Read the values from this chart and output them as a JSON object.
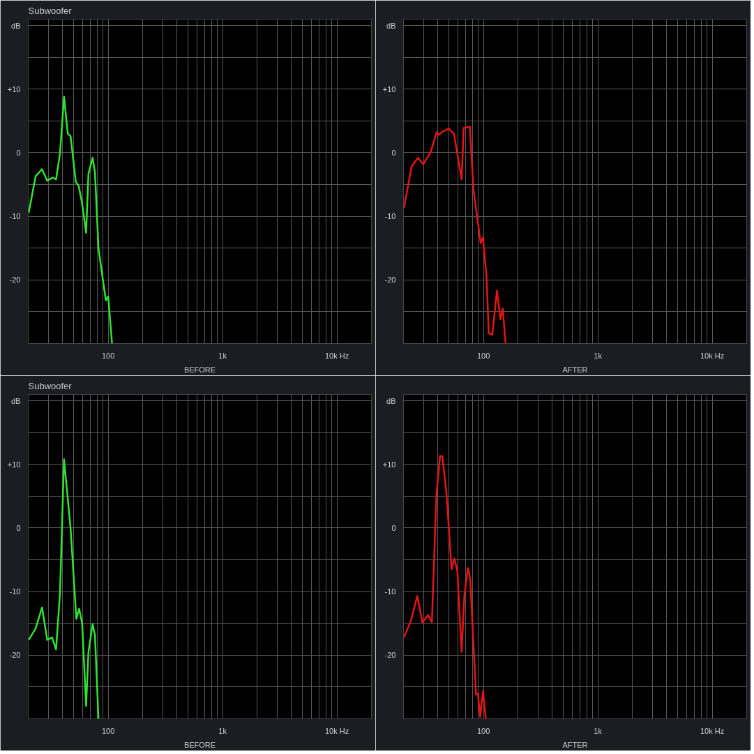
{
  "chart_data": [
    {
      "type": "line",
      "title": "Subwoofer",
      "xlabel": "BEFORE",
      "log": "x",
      "grid": true,
      "marker": "none",
      "line_style": "solid",
      "xlim": [
        20,
        20000
      ],
      "ylim": [
        -30,
        21
      ],
      "xticks": [
        {
          "value": 30,
          "label": null
        },
        {
          "value": 40,
          "label": null
        },
        {
          "value": 50,
          "label": null
        },
        {
          "value": 60,
          "label": null
        },
        {
          "value": 70,
          "label": null
        },
        {
          "value": 80,
          "label": null
        },
        {
          "value": 90,
          "label": null
        },
        100,
        {
          "value": 200,
          "label": null
        },
        {
          "value": 300,
          "label": null
        },
        {
          "value": 400,
          "label": null
        },
        {
          "value": 500,
          "label": null
        },
        {
          "value": 600,
          "label": null
        },
        {
          "value": 700,
          "label": null
        },
        {
          "value": 800,
          "label": null
        },
        {
          "value": 900,
          "label": null
        },
        {
          "value": 1000,
          "label": "1k"
        },
        {
          "value": 2000,
          "label": null
        },
        {
          "value": 3000,
          "label": null
        },
        {
          "value": 4000,
          "label": null
        },
        {
          "value": 5000,
          "label": null
        },
        {
          "value": 6000,
          "label": null
        },
        {
          "value": 7000,
          "label": null
        },
        {
          "value": 8000,
          "label": null
        },
        {
          "value": 9000,
          "label": null
        },
        {
          "value": 10000,
          "label": "10k Hz"
        }
      ],
      "yticks": [
        {
          "value": 20,
          "label": "dB"
        },
        {
          "value": 15,
          "label": null
        },
        {
          "value": 10,
          "label": "+10"
        },
        {
          "value": 5,
          "label": null
        },
        0,
        {
          "value": -5,
          "label": null
        },
        -10,
        {
          "value": -15,
          "label": null
        },
        -20,
        {
          "value": -25,
          "label": null
        }
      ],
      "series": [
        {
          "color": "#2ee62e",
          "x": [
            20.2,
            23.2,
            26.4,
            29.3,
            32.7,
            35.0,
            37.9,
            41.1,
            44.3,
            46.9,
            52.1,
            55.2,
            59.2,
            64.1,
            67.2,
            73.1,
            76.6,
            82.2,
            90.2,
            95.4,
            100,
            108
          ],
          "values": [
            -9.4,
            -3.7,
            -2.6,
            -4.4,
            -3.9,
            -4.2,
            -0.1,
            8.8,
            3.0,
            2.6,
            -4.6,
            -5.2,
            -8.0,
            -12.6,
            -3.3,
            -0.8,
            -3.1,
            -15.0,
            -20.2,
            -23.2,
            -22.6,
            -30
          ]
        }
      ]
    },
    {
      "type": "line",
      "xlabel": "AFTER",
      "log": "x",
      "grid": true,
      "marker": "none",
      "line_style": "solid",
      "xlim": [
        20,
        20000
      ],
      "ylim": [
        -30,
        21
      ],
      "xticks": [
        {
          "value": 30,
          "label": null
        },
        {
          "value": 40,
          "label": null
        },
        {
          "value": 50,
          "label": null
        },
        {
          "value": 60,
          "label": null
        },
        {
          "value": 70,
          "label": null
        },
        {
          "value": 80,
          "label": null
        },
        {
          "value": 90,
          "label": null
        },
        100,
        {
          "value": 200,
          "label": null
        },
        {
          "value": 300,
          "label": null
        },
        {
          "value": 400,
          "label": null
        },
        {
          "value": 500,
          "label": null
        },
        {
          "value": 600,
          "label": null
        },
        {
          "value": 700,
          "label": null
        },
        {
          "value": 800,
          "label": null
        },
        {
          "value": 900,
          "label": null
        },
        {
          "value": 1000,
          "label": "1k"
        },
        {
          "value": 2000,
          "label": null
        },
        {
          "value": 3000,
          "label": null
        },
        {
          "value": 4000,
          "label": null
        },
        {
          "value": 5000,
          "label": null
        },
        {
          "value": 6000,
          "label": null
        },
        {
          "value": 7000,
          "label": null
        },
        {
          "value": 8000,
          "label": null
        },
        {
          "value": 9000,
          "label": null
        },
        {
          "value": 10000,
          "label": "10k Hz"
        }
      ],
      "yticks": [
        {
          "value": 20,
          "label": "dB"
        },
        {
          "value": 15,
          "label": null
        },
        {
          "value": 10,
          "label": "+10"
        },
        {
          "value": 5,
          "label": null
        },
        0,
        {
          "value": -5,
          "label": null
        },
        -10,
        {
          "value": -15,
          "label": null
        },
        -20,
        {
          "value": -25,
          "label": null
        }
      ],
      "series": [
        {
          "color": "#e81414",
          "x": [
            20.2,
            23.5,
            26.7,
            29.8,
            34.6,
            38.8,
            40.7,
            43.7,
            49.6,
            55.2,
            64.4,
            67.2,
            75.9,
            82.2,
            94.5,
            99,
            106.3,
            111.3,
            119.5,
            131.2,
            140.6,
            147.5,
            156
          ],
          "values": [
            -8.7,
            -2.2,
            -0.8,
            -1.8,
            0.1,
            3.2,
            2.8,
            3.3,
            3.8,
            3.0,
            -4.2,
            3.9,
            4.1,
            -6.1,
            -14.2,
            -13.3,
            -19.5,
            -28.4,
            -28.6,
            -21.7,
            -26.2,
            -24.5,
            -30
          ]
        }
      ]
    },
    {
      "type": "line",
      "title": "Subwoofer",
      "xlabel": "BEFORE",
      "log": "x",
      "grid": true,
      "marker": "none",
      "line_style": "solid",
      "xlim": [
        20,
        20000
      ],
      "ylim": [
        -30,
        21
      ],
      "xticks": [
        {
          "value": 30,
          "label": null
        },
        {
          "value": 40,
          "label": null
        },
        {
          "value": 50,
          "label": null
        },
        {
          "value": 60,
          "label": null
        },
        {
          "value": 70,
          "label": null
        },
        {
          "value": 80,
          "label": null
        },
        {
          "value": 90,
          "label": null
        },
        100,
        {
          "value": 200,
          "label": null
        },
        {
          "value": 300,
          "label": null
        },
        {
          "value": 400,
          "label": null
        },
        {
          "value": 500,
          "label": null
        },
        {
          "value": 600,
          "label": null
        },
        {
          "value": 700,
          "label": null
        },
        {
          "value": 800,
          "label": null
        },
        {
          "value": 900,
          "label": null
        },
        {
          "value": 1000,
          "label": "1k"
        },
        {
          "value": 2000,
          "label": null
        },
        {
          "value": 3000,
          "label": null
        },
        {
          "value": 4000,
          "label": null
        },
        {
          "value": 5000,
          "label": null
        },
        {
          "value": 6000,
          "label": null
        },
        {
          "value": 7000,
          "label": null
        },
        {
          "value": 8000,
          "label": null
        },
        {
          "value": 9000,
          "label": null
        },
        {
          "value": 10000,
          "label": "10k Hz"
        }
      ],
      "yticks": [
        {
          "value": 20,
          "label": "dB"
        },
        {
          "value": 15,
          "label": null
        },
        {
          "value": 10,
          "label": "+10"
        },
        {
          "value": 5,
          "label": null
        },
        0,
        {
          "value": -5,
          "label": null
        },
        -10,
        {
          "value": -15,
          "label": null
        },
        -20,
        {
          "value": -25,
          "label": null
        }
      ],
      "series": [
        {
          "color": "#2ee62e",
          "x": [
            20.2,
            23.2,
            26.4,
            29.3,
            32.3,
            35.0,
            37.9,
            41.1,
            46.9,
            52.7,
            55.7,
            59.2,
            64.1,
            67.2,
            73.1,
            76.6,
            82.2
          ],
          "values": [
            -17.6,
            -15.8,
            -12.5,
            -17.6,
            -17.2,
            -19.1,
            -10.2,
            10.8,
            -0.1,
            -14.3,
            -12.7,
            -15.0,
            -28.0,
            -19.5,
            -15.1,
            -16.9,
            -30
          ]
        }
      ]
    },
    {
      "type": "line",
      "xlabel": "AFTER",
      "log": "x",
      "grid": true,
      "marker": "none",
      "line_style": "solid",
      "xlim": [
        20,
        20000
      ],
      "ylim": [
        -30,
        21
      ],
      "xticks": [
        {
          "value": 30,
          "label": null
        },
        {
          "value": 40,
          "label": null
        },
        {
          "value": 50,
          "label": null
        },
        {
          "value": 60,
          "label": null
        },
        {
          "value": 70,
          "label": null
        },
        {
          "value": 80,
          "label": null
        },
        {
          "value": 90,
          "label": null
        },
        100,
        {
          "value": 200,
          "label": null
        },
        {
          "value": 300,
          "label": null
        },
        {
          "value": 400,
          "label": null
        },
        {
          "value": 500,
          "label": null
        },
        {
          "value": 600,
          "label": null
        },
        {
          "value": 700,
          "label": null
        },
        {
          "value": 800,
          "label": null
        },
        {
          "value": 900,
          "label": null
        },
        {
          "value": 1000,
          "label": "1k"
        },
        {
          "value": 2000,
          "label": null
        },
        {
          "value": 3000,
          "label": null
        },
        {
          "value": 4000,
          "label": null
        },
        {
          "value": 5000,
          "label": null
        },
        {
          "value": 6000,
          "label": null
        },
        {
          "value": 7000,
          "label": null
        },
        {
          "value": 8000,
          "label": null
        },
        {
          "value": 9000,
          "label": null
        },
        {
          "value": 10000,
          "label": "10k Hz"
        }
      ],
      "yticks": [
        {
          "value": 20,
          "label": "dB"
        },
        {
          "value": 15,
          "label": null
        },
        {
          "value": 10,
          "label": "+10"
        },
        {
          "value": 5,
          "label": null
        },
        0,
        {
          "value": -5,
          "label": null
        },
        -10,
        {
          "value": -15,
          "label": null
        },
        -20,
        {
          "value": -25,
          "label": null
        }
      ],
      "series": [
        {
          "color": "#e81414",
          "x": [
            20.2,
            23.2,
            26.4,
            29.3,
            32.7,
            35.4,
            38.8,
            41.7,
            43.7,
            47.5,
            52.7,
            55.7,
            59.2,
            64.4,
            68.1,
            73.1,
            76.6,
            86.1,
            89.4,
            93.7,
            99.1,
            104.8
          ],
          "values": [
            -17.2,
            -14.6,
            -10.7,
            -14.9,
            -13.7,
            -14.8,
            5.1,
            11.3,
            11.3,
            5.4,
            -6.5,
            -4.8,
            -6.8,
            -19.5,
            -10.6,
            -6.3,
            -8.0,
            -26.2,
            -26.0,
            -29.7,
            -25.6,
            -30
          ]
        }
      ]
    }
  ]
}
